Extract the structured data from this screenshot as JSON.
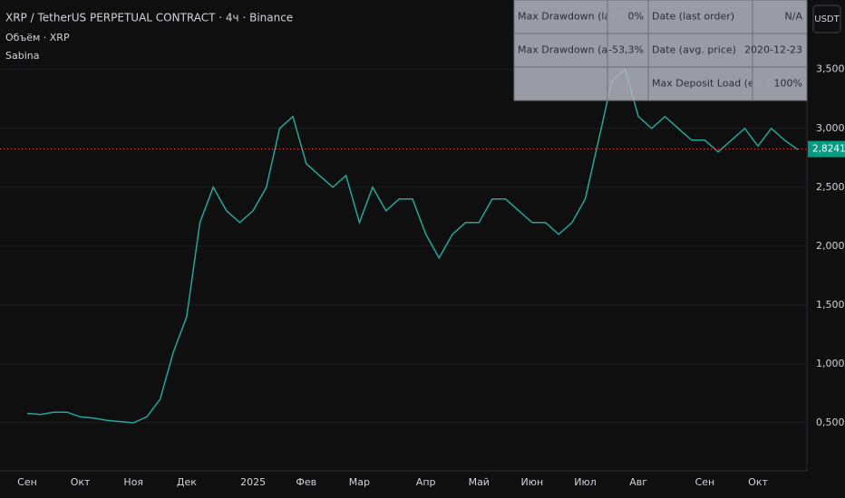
{
  "chart_data": {
    "type": "line",
    "title": "XRP / TetherUS PERPETUAL CONTRACT · 4ч · Binance",
    "indicators": [
      "Объём · XRP",
      "Sabina"
    ],
    "currency": "USDT",
    "color": "#26a69a",
    "categories": [
      "Сен",
      null,
      null,
      null,
      "Окт",
      null,
      null,
      null,
      "Ноя",
      null,
      null,
      null,
      "Дек",
      null,
      null,
      null,
      null,
      "2025",
      null,
      null,
      null,
      "Фев",
      null,
      null,
      null,
      "Мар",
      null,
      null,
      null,
      null,
      "Апр",
      null,
      null,
      null,
      "Май",
      null,
      null,
      null,
      "Июн",
      null,
      null,
      null,
      "Июл",
      null,
      null,
      null,
      "Авг",
      null,
      null,
      null,
      null,
      "Сен",
      null,
      null,
      null,
      "Окт",
      null,
      null,
      null
    ],
    "values": [
      0.58,
      0.57,
      0.59,
      0.59,
      0.55,
      0.54,
      0.52,
      0.51,
      0.5,
      0.55,
      0.7,
      1.1,
      1.4,
      2.2,
      2.5,
      2.3,
      2.2,
      2.3,
      2.5,
      3.0,
      3.1,
      2.7,
      2.6,
      2.5,
      2.6,
      2.2,
      2.5,
      2.3,
      2.4,
      2.4,
      2.1,
      1.9,
      2.1,
      2.2,
      2.2,
      2.4,
      2.4,
      2.3,
      2.2,
      2.2,
      2.1,
      2.2,
      2.4,
      2.9,
      3.4,
      3.5,
      3.1,
      3.0,
      3.1,
      3.0,
      2.9,
      2.9,
      2.8,
      2.9,
      3.0,
      2.85,
      3.0,
      2.9,
      2.82
    ],
    "ylim": [
      0.13,
      4.09
    ],
    "yticks": [
      {
        "value": 0.5,
        "label": "0,5000"
      },
      {
        "value": 1.0,
        "label": "1,0000"
      },
      {
        "value": 1.5,
        "label": "1,5000"
      },
      {
        "value": 2.0,
        "label": "2,0000"
      },
      {
        "value": 2.5,
        "label": "2,5000"
      },
      {
        "value": 3.0,
        "label": "3,0000"
      },
      {
        "value": 3.5,
        "label": "3,5000"
      }
    ],
    "last_price": {
      "value": 2.8241,
      "label": "2,8241"
    },
    "stats_table": {
      "rows": [
        [
          "Max Drawdown (last)",
          "0%",
          "Date (last order)",
          "N/A"
        ],
        [
          "Max Drawdown (avg.)",
          "-53,3%",
          "Date (avg. price)",
          "2020-12-23"
        ],
        [
          null,
          null,
          "Max Deposit Load (est.)",
          "100%"
        ]
      ]
    }
  }
}
